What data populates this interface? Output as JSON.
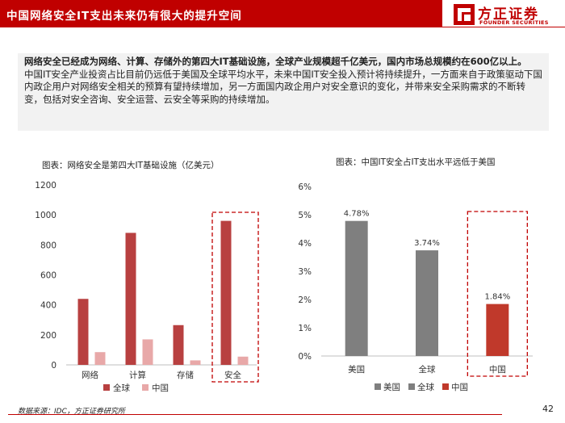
{
  "header": {
    "title": "中国网络安全IT支出未来仍有很大的提升空间",
    "logo_cn": "方正证券",
    "logo_en": "FOUNDER SECURITIES"
  },
  "summary": {
    "lead": "网络安全已经成为网络、计算、存储外的第四大IT基础设施，全球产业规模超千亿美元，国内市场总规模约在600亿以上。",
    "body": "中国IT安全产业投资占比目前仍远低于美国及全球平均水平，未来中国IT安全投入预计将持续提升，一方面来自于政策驱动下国内政企用户对网络安全相关的预算有望持续增加，另一方面国内政企用户对安全意识的变化，并带来安全采购需求的不断转变，包括对安全咨询、安全运营、云安全等采购的持续增加。"
  },
  "chart_data": [
    {
      "type": "bar",
      "title": "图表：网络安全是第四大IT基础设施（亿美元）",
      "categories": [
        "网络",
        "计算",
        "存储",
        "安全"
      ],
      "series": [
        {
          "name": "全球",
          "values": [
            440,
            880,
            265,
            960
          ],
          "color": "#b84040"
        },
        {
          "name": "中国",
          "values": [
            85,
            170,
            30,
            55
          ],
          "color": "#e8a8a8"
        }
      ],
      "ylim": [
        0,
        1200
      ],
      "yticks": [
        "0",
        "200",
        "400",
        "600",
        "800",
        "1000",
        "1200"
      ],
      "legend_placement": "bottom",
      "highlight_category": "安全"
    },
    {
      "type": "bar",
      "title": "图表：中国IT安全占IT支出水平远低于美国",
      "categories": [
        "美国",
        "全球",
        "中国"
      ],
      "values": [
        4.78,
        3.74,
        1.84
      ],
      "data_labels": [
        "4.78%",
        "3.74%",
        "1.84%"
      ],
      "colors": [
        "#7f7f7f",
        "#7f7f7f",
        "#c0392b"
      ],
      "legend": [
        "美国",
        "全球",
        "中国"
      ],
      "legend_colors": [
        "#7f7f7f",
        "#7f7f7f",
        "#c0392b"
      ],
      "ylim": [
        0,
        6
      ],
      "yticks": [
        "0%",
        "1%",
        "2%",
        "3%",
        "4%",
        "5%",
        "6%"
      ],
      "legend_placement": "bottom",
      "highlight_category": "中国"
    }
  ],
  "footer": {
    "source": "数据来源：IDC，方正证券研究所",
    "page": "42"
  }
}
